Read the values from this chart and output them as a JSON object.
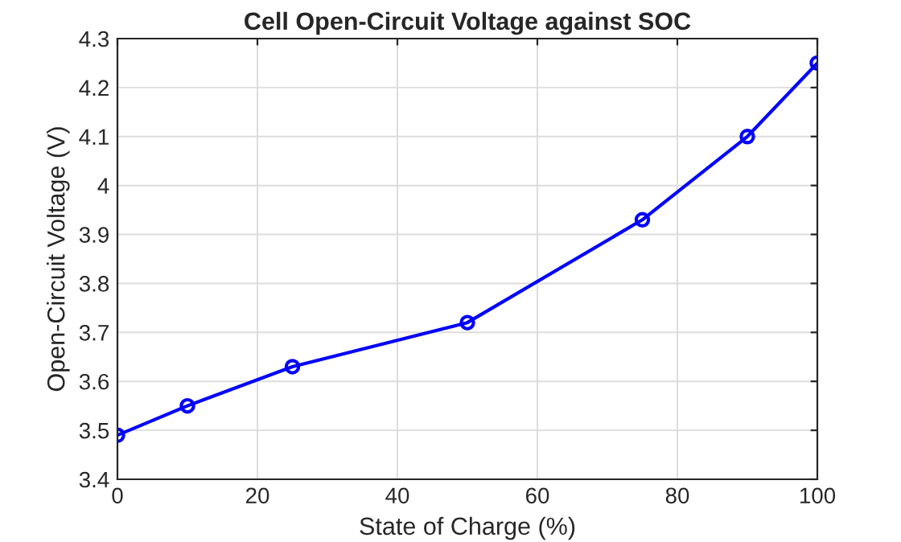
{
  "chart_data": {
    "type": "line",
    "title": "Cell Open-Circuit Voltage against SOC",
    "xlabel": "State of Charge (%)",
    "ylabel": "Open-Circuit Voltage (V)",
    "x": [
      0,
      10,
      25,
      50,
      75,
      90,
      100
    ],
    "series": [
      {
        "color": "#0000ff",
        "values": [
          3.49,
          3.55,
          3.63,
          3.72,
          3.93,
          4.1,
          4.25
        ]
      }
    ],
    "xlim": [
      0,
      100
    ],
    "xticks": [
      0,
      20,
      40,
      60,
      80,
      100
    ],
    "ylim": [
      3.4,
      4.3
    ],
    "yticks": [
      3.4,
      3.5,
      3.6,
      3.7,
      3.8,
      3.9,
      4,
      4.1,
      4.2,
      4.3
    ],
    "grid": true,
    "marker": "circle",
    "line_style": "solid",
    "legend": false
  }
}
